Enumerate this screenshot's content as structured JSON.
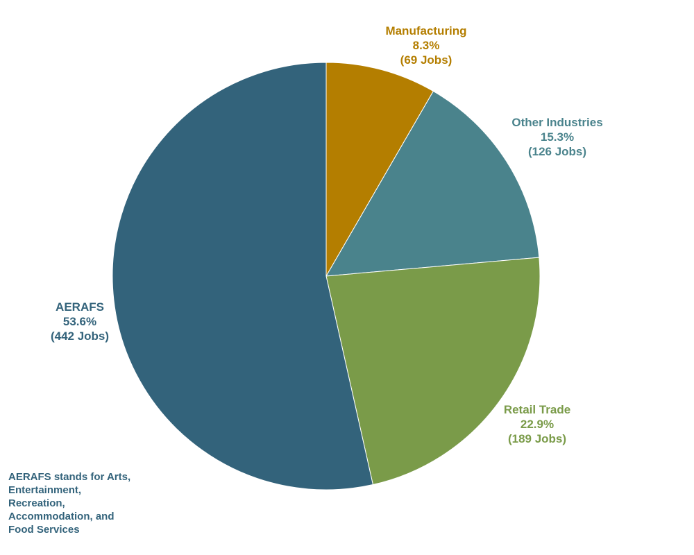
{
  "chart_data": {
    "type": "pie",
    "title": "",
    "slices": [
      {
        "name": "Manufacturing",
        "value": 69,
        "percent_label": "8.3%",
        "jobs_label": "(69 Jobs)",
        "color": "#b47e00"
      },
      {
        "name": "Other Industries",
        "value": 126,
        "percent_label": "15.3%",
        "jobs_label": "(126 Jobs)",
        "color": "#4a838c"
      },
      {
        "name": "Retail Trade",
        "value": 189,
        "percent_label": "22.9%",
        "jobs_label": "(189 Jobs)",
        "color": "#7a9b49"
      },
      {
        "name": "AERAFS",
        "value": 442,
        "percent_label": "53.6%",
        "jobs_label": "(442 Jobs)",
        "color": "#33637b"
      }
    ],
    "start": "12 o'clock",
    "direction": "clockwise",
    "legend": "none"
  },
  "footnote": "AERAFS stands for Arts,\nEntertainment,\nRecreation,\nAccommodation, and\nFood Services"
}
